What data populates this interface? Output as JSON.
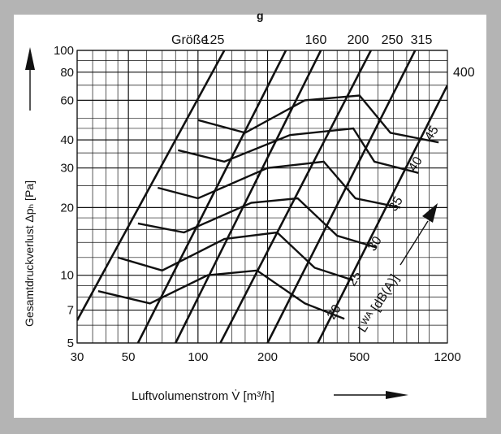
{
  "title_fragment": "g",
  "chart_data": {
    "type": "line",
    "xlabel": "Luftvolumenstrom V̇ [m³/h]",
    "ylabel": "Gesamtdruckverlust Δpₕ [Pa]",
    "xscale": "log",
    "yscale": "log",
    "xlim": [
      30,
      1200
    ],
    "ylim": [
      5,
      100
    ],
    "x_ticks": [
      30,
      50,
      100,
      200,
      500,
      1200
    ],
    "y_ticks": [
      5,
      7,
      10,
      20,
      30,
      40,
      60,
      80,
      100
    ],
    "grid": true,
    "size_label": "Größe",
    "size_series": [
      {
        "name": "125",
        "points": [
          [
            30,
            6.3
          ],
          [
            130,
            100
          ]
        ]
      },
      {
        "name": "160",
        "points": [
          [
            55,
            5
          ],
          [
            240,
            100
          ]
        ]
      },
      {
        "name": "200",
        "points": [
          [
            80,
            5
          ],
          [
            340,
            100
          ]
        ]
      },
      {
        "name": "250",
        "points": [
          [
            125,
            5
          ],
          [
            560,
            100
          ]
        ]
      },
      {
        "name": "315",
        "points": [
          [
            200,
            5
          ],
          [
            870,
            100
          ]
        ]
      },
      {
        "name": "400",
        "points": [
          [
            330,
            5
          ],
          [
            1200,
            70
          ]
        ]
      }
    ],
    "noise_label": "Lᵂᴬ [dB(A)]",
    "noise_series": [
      {
        "name": "20",
        "points": [
          [
            37,
            8.5
          ],
          [
            62,
            7.5
          ],
          [
            110,
            10
          ],
          [
            180,
            10.5
          ],
          [
            290,
            7.5
          ],
          [
            430,
            6.4
          ]
        ]
      },
      {
        "name": "25",
        "points": [
          [
            45,
            12
          ],
          [
            70,
            10.5
          ],
          [
            130,
            14.5
          ],
          [
            220,
            15.5
          ],
          [
            320,
            10.8
          ],
          [
            470,
            9.5
          ]
        ]
      },
      {
        "name": "30",
        "points": [
          [
            55,
            17
          ],
          [
            87,
            15.5
          ],
          [
            170,
            21
          ],
          [
            270,
            22
          ],
          [
            400,
            15
          ],
          [
            590,
            13.3
          ]
        ]
      },
      {
        "name": "35",
        "points": [
          [
            67,
            24.5
          ],
          [
            100,
            22
          ],
          [
            200,
            30
          ],
          [
            350,
            32
          ],
          [
            480,
            22
          ],
          [
            750,
            20
          ]
        ]
      },
      {
        "name": "40",
        "points": [
          [
            82,
            36
          ],
          [
            130,
            32
          ],
          [
            250,
            42
          ],
          [
            470,
            45
          ],
          [
            580,
            32
          ],
          [
            900,
            28.5
          ]
        ]
      },
      {
        "name": "45",
        "points": [
          [
            100,
            49
          ],
          [
            160,
            43
          ],
          [
            290,
            60
          ],
          [
            500,
            63
          ],
          [
            680,
            43
          ],
          [
            1100,
            39
          ]
        ]
      }
    ]
  }
}
